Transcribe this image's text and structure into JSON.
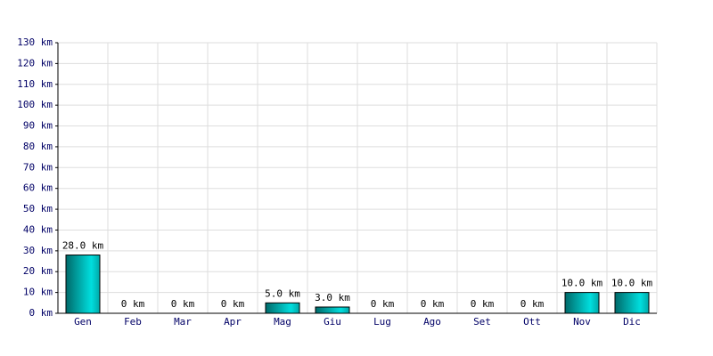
{
  "chart_data": {
    "type": "bar",
    "categories": [
      "Gen",
      "Feb",
      "Mar",
      "Apr",
      "Mag",
      "Giu",
      "Lug",
      "Ago",
      "Set",
      "Ott",
      "Nov",
      "Dic"
    ],
    "values": [
      28,
      0,
      0,
      0,
      5,
      3,
      0,
      0,
      0,
      0,
      10,
      10
    ],
    "value_labels": [
      "28.0 km",
      "0 km",
      "0 km",
      "0 km",
      "5.0 km",
      "3.0 km",
      "0 km",
      "0 km",
      "0 km",
      "0 km",
      "10.0 km",
      "10.0 km"
    ],
    "color": "#00dede",
    "ylim": [
      0,
      130
    ],
    "yticks": [
      {
        "value": 0,
        "label": "0 km"
      },
      {
        "value": 10,
        "label": "10 km"
      },
      {
        "value": 20,
        "label": "20 km"
      },
      {
        "value": 30,
        "label": "30 km"
      },
      {
        "value": 40,
        "label": "40 km"
      },
      {
        "value": 50,
        "label": "50 km"
      },
      {
        "value": 60,
        "label": "60 km"
      },
      {
        "value": 70,
        "label": "70 km"
      },
      {
        "value": 80,
        "label": "80 km"
      },
      {
        "value": 90,
        "label": "90 km"
      },
      {
        "value": 100,
        "label": "100 km"
      },
      {
        "value": 110,
        "label": "110 km"
      },
      {
        "value": 120,
        "label": "120 km"
      },
      {
        "value": 130,
        "label": "130 km"
      }
    ],
    "grid": true
  }
}
